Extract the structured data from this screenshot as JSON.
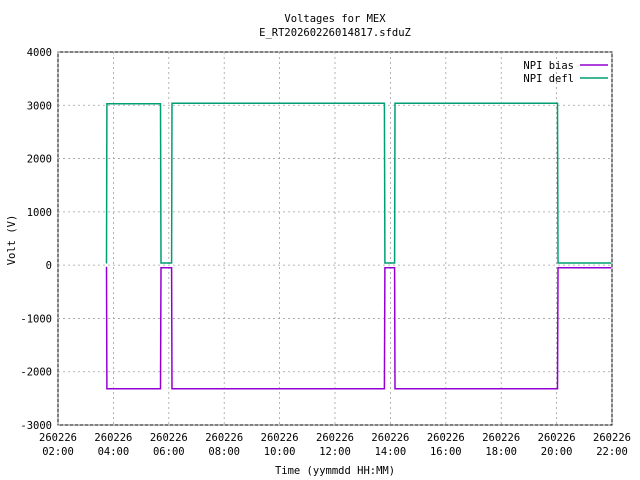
{
  "chart_data": {
    "type": "line",
    "title": "Voltages for MEX",
    "subtitle": "E_RT20260226014817.sfduZ",
    "x_label": "Time (yymmdd HH:MM)",
    "y_label": "Volt (V)",
    "x": [
      "260226 03:45",
      "260226 03:46",
      "260226 05:42",
      "260226 05:43",
      "260226 06:06",
      "260226 06:07",
      "260226 13:47",
      "260226 13:48",
      "260226 14:09",
      "260226 14:10",
      "260226 20:02",
      "260226 20:03",
      "260226 21:58"
    ],
    "series": [
      {
        "name": "NPI bias",
        "color": "#9400d3",
        "values": [
          -30,
          -2320,
          -2320,
          -50,
          -50,
          -2320,
          -2320,
          -50,
          -50,
          -2320,
          -2320,
          -50,
          -50
        ]
      },
      {
        "name": "NPI defl",
        "color": "#009e73",
        "values": [
          30,
          3030,
          3030,
          40,
          40,
          3040,
          3040,
          40,
          40,
          3040,
          3040,
          40,
          40
        ]
      }
    ],
    "xlim": [
      "260226 02:00",
      "260226 22:00"
    ],
    "xticks": [
      "260226 02:00",
      "260226 04:00",
      "260226 06:00",
      "260226 08:00",
      "260226 10:00",
      "260226 12:00",
      "260226 14:00",
      "260226 16:00",
      "260226 18:00",
      "260226 20:00",
      "260226 22:00"
    ],
    "ylim": [
      -3000,
      4000
    ],
    "yticks": [
      -3000,
      -2000,
      -1000,
      0,
      1000,
      2000,
      3000,
      4000
    ],
    "grid": true,
    "legend": "top-right"
  }
}
